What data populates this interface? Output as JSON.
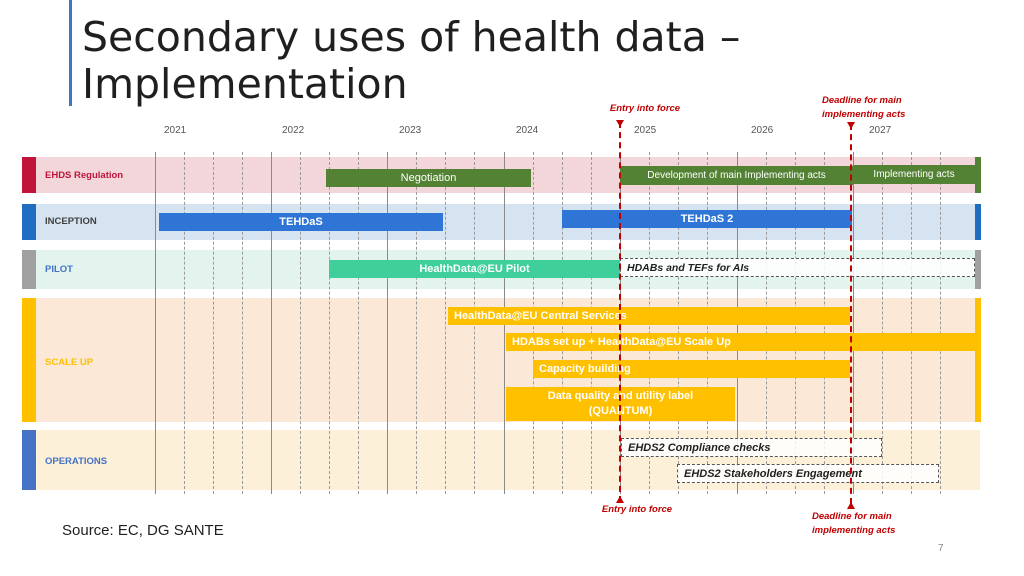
{
  "title": {
    "line1": "Secondary uses of health data –",
    "line2": "Implementation"
  },
  "years": [
    "2021",
    "2022",
    "2023",
    "2024",
    "2025",
    "2026",
    "2027"
  ],
  "lanes": {
    "regulation": "EHDS Regulation",
    "inception": "INCEPTION",
    "pilot": "PILOT",
    "scaleup": "SCALE UP",
    "operations": "OPERATIONS"
  },
  "tasks": {
    "negotiation": "Negotiation",
    "dev_acts": "Development of main Implementing acts",
    "impl_acts": "Implementing acts",
    "tehdas": "TEHDaS",
    "tehdas2": "TEHDaS 2",
    "hd_pilot": "HealthData@EU Pilot",
    "hdabs_tefs": "HDABs and TEFs for AIs",
    "central_services": "HealthData@EU Central Services",
    "hdabs_setup": "HDABs set up + HealthData@EU Scale Up",
    "capacity": "Capacity building",
    "quantum_1": "Data quality and utility label",
    "quantum_2": "(QUANTUM)",
    "compliance": "EHDS2 Compliance checks",
    "stakeholders": "EHDS2 Stakeholders Engagement"
  },
  "milestones": {
    "entry_top": "Entry into force",
    "entry_bottom": "Entry into force",
    "deadline_top_1": "Deadline for main",
    "deadline_top_2": "implementing acts",
    "deadline_bottom_1": "Deadline for main",
    "deadline_bottom_2": "implementing acts"
  },
  "source": "Source: EC, DG SANTE",
  "page_number": "7",
  "colors": {
    "regulation_bg": "#f3d6da",
    "regulation_accent": "#c0143c",
    "regulation_task": "#548235",
    "inception_bg": "#d6e3f0",
    "inception_accent": "#1f6cc0",
    "inception_task": "#2e75d6",
    "pilot_bg": "#e3f4ef",
    "pilot_accent": "#a0a0a0",
    "pilot_task": "#3ecf9a",
    "scaleup_bg": "#fbe8d6",
    "scaleup_accent": "#ffc000",
    "scaleup_task": "#ffc000",
    "operations_bg": "#fdf0d9",
    "operations_accent": "#4472c4",
    "milestone": "#c00000"
  }
}
